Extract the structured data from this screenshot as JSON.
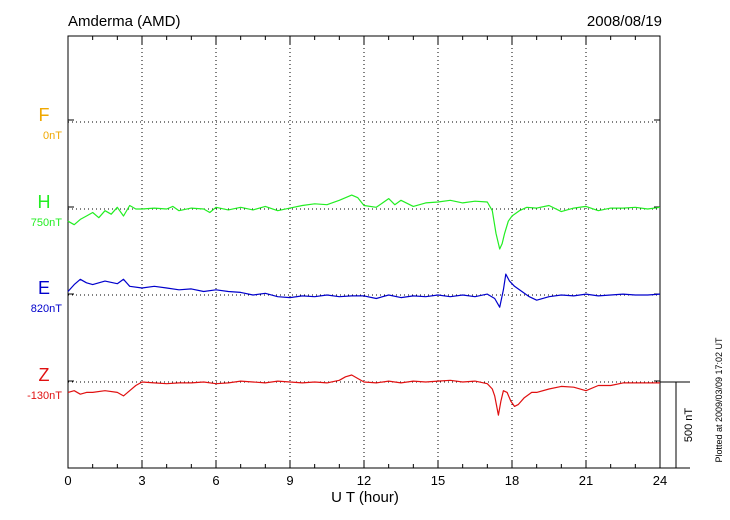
{
  "chart_data": {
    "type": "line",
    "title_left": "Amderma (AMD)",
    "title_right": "2008/08/19",
    "xlabel": "U T (hour)",
    "xlim": [
      0,
      24
    ],
    "x_ticks": [
      0,
      3,
      6,
      9,
      12,
      15,
      18,
      21,
      24
    ],
    "y_scale_nT_per_division": 100,
    "scale_bar_label": "500 nT",
    "plotted_note": "Plotted at 2009/03/09 17:02 UT",
    "grid": "dotted",
    "legend": "left-side component labels",
    "series": [
      {
        "name": "F",
        "baseline_label": "0nT",
        "baseline_nT": 0,
        "color": "#f0a800",
        "x": [],
        "y": []
      },
      {
        "name": "H",
        "baseline_label": "750nT",
        "baseline_nT": 750,
        "color": "#22ee22",
        "x": [
          0,
          0.25,
          0.5,
          0.75,
          1.0,
          1.25,
          1.5,
          1.75,
          2.0,
          2.25,
          2.5,
          2.75,
          3.0,
          3.5,
          4.0,
          4.25,
          4.5,
          5.0,
          5.5,
          5.75,
          6.0,
          6.5,
          7.0,
          7.5,
          8.0,
          8.5,
          9.0,
          9.5,
          10.0,
          10.5,
          11.0,
          11.5,
          11.75,
          12.0,
          12.5,
          13.0,
          13.25,
          13.5,
          14.0,
          14.5,
          15.0,
          15.5,
          16.0,
          16.5,
          17.0,
          17.2,
          17.35,
          17.5,
          17.6,
          17.7,
          17.85,
          18.0,
          18.3,
          18.6,
          19.0,
          19.5,
          20.0,
          20.5,
          21.0,
          21.5,
          22.0,
          22.5,
          23.0,
          23.5,
          24.0
        ],
        "y": [
          -14,
          -18,
          -12,
          -8,
          -4,
          -10,
          -2,
          -6,
          2,
          -8,
          4,
          0,
          0,
          1,
          0,
          3,
          -2,
          1,
          0,
          -4,
          2,
          -1,
          2,
          -1,
          3,
          -2,
          1,
          4,
          6,
          5,
          10,
          16,
          13,
          4,
          2,
          12,
          5,
          10,
          3,
          7,
          8,
          10,
          7,
          9,
          8,
          -2,
          -28,
          -46,
          -40,
          -28,
          -14,
          -8,
          -2,
          2,
          1,
          4,
          -3,
          1,
          3,
          -2,
          1,
          1,
          2,
          0,
          2
        ]
      },
      {
        "name": "E",
        "baseline_label": "820nT",
        "baseline_nT": 820,
        "color": "#0000cc",
        "x": [
          0,
          0.25,
          0.5,
          0.75,
          1.0,
          1.5,
          2.0,
          2.25,
          2.5,
          3.0,
          3.5,
          4.0,
          4.5,
          5.0,
          5.5,
          6.0,
          6.5,
          7.0,
          7.5,
          8.0,
          8.5,
          9.0,
          9.5,
          10.0,
          10.5,
          11.0,
          11.5,
          12.0,
          12.5,
          13.0,
          13.5,
          14.0,
          14.5,
          15.0,
          15.5,
          16.0,
          16.5,
          17.0,
          17.3,
          17.5,
          17.65,
          17.75,
          17.9,
          18.1,
          18.4,
          18.7,
          19.0,
          19.5,
          20.0,
          20.5,
          21.0,
          21.5,
          22.0,
          22.5,
          23.0,
          23.5,
          24.0
        ],
        "y": [
          4,
          12,
          18,
          14,
          12,
          16,
          13,
          18,
          10,
          8,
          10,
          8,
          6,
          7,
          4,
          6,
          4,
          3,
          0,
          2,
          -2,
          -3,
          -1,
          -2,
          0,
          -2,
          -1,
          -1,
          -4,
          0,
          -3,
          -1,
          -2,
          0,
          -2,
          0,
          -2,
          1,
          -4,
          -14,
          6,
          24,
          16,
          10,
          4,
          -2,
          -6,
          -2,
          0,
          -1,
          1,
          -1,
          0,
          1,
          0,
          0,
          1
        ]
      },
      {
        "name": "Z",
        "baseline_label": "-130nT",
        "baseline_nT": -130,
        "color": "#e01010",
        "x": [
          0,
          0.25,
          0.5,
          0.75,
          1.0,
          1.5,
          2.0,
          2.25,
          2.5,
          2.75,
          3.0,
          3.5,
          4.0,
          4.5,
          5.0,
          5.5,
          6.0,
          6.5,
          7.0,
          7.5,
          8.0,
          8.5,
          9.0,
          9.5,
          10.0,
          10.5,
          11.0,
          11.25,
          11.5,
          11.75,
          12.0,
          12.5,
          13.0,
          13.5,
          14.0,
          14.5,
          15.0,
          15.5,
          16.0,
          16.5,
          17.0,
          17.2,
          17.3,
          17.45,
          17.55,
          17.65,
          17.8,
          17.95,
          18.1,
          18.25,
          18.5,
          18.8,
          19.0,
          19.5,
          20.0,
          20.5,
          21.0,
          21.5,
          22.0,
          22.5,
          23.0,
          23.5,
          24.0
        ],
        "y": [
          -12,
          -10,
          -14,
          -12,
          -12,
          -10,
          -12,
          -16,
          -10,
          -4,
          0,
          -1,
          -2,
          -1,
          -1,
          0,
          -2,
          -1,
          1,
          0,
          -1,
          1,
          0,
          -1,
          0,
          -1,
          2,
          6,
          8,
          4,
          0,
          -1,
          1,
          -1,
          1,
          0,
          1,
          2,
          0,
          1,
          -2,
          -8,
          -16,
          -38,
          -22,
          -10,
          -12,
          -22,
          -28,
          -26,
          -18,
          -12,
          -12,
          -8,
          -5,
          -6,
          -10,
          -4,
          -4,
          -1,
          -1,
          -1,
          -1
        ]
      }
    ]
  }
}
